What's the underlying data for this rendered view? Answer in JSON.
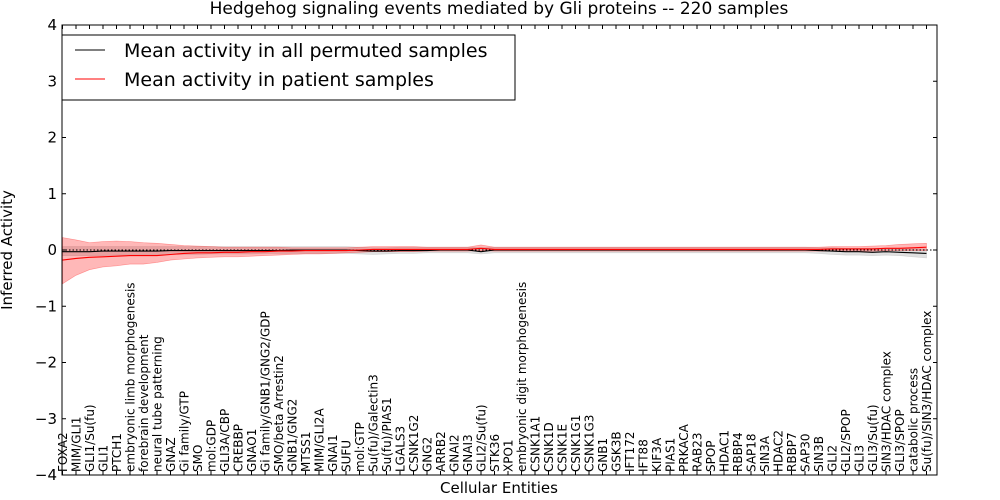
{
  "chart_data": {
    "type": "line",
    "title": "Hedgehog signaling events mediated by Gli proteins -- 220 samples",
    "xlabel": "Cellular Entities",
    "ylabel": "Inferred Activity",
    "ylim": [
      -4,
      4
    ],
    "yticks": [
      -4,
      -3,
      -2,
      -1,
      0,
      1,
      2,
      3,
      4
    ],
    "ytick_labels": [
      "−4",
      "−3",
      "−2",
      "−1",
      "0",
      "1",
      "2",
      "3",
      "4"
    ],
    "grid": false,
    "legend_position": "top-left",
    "categories": [
      "FOXA2",
      "MIM/GLI1",
      "GLI1/Su(fu)",
      "GLI1",
      "PTCH1",
      "embryonic limb morphogenesis",
      "forebrain development",
      "neural tube patterning",
      "GNAZ",
      "Gi family/GTP",
      "SMO",
      "mol:GDP",
      "GLI3A/CBP",
      "CREBBP",
      "GNAO1",
      "Gi family/GNB1/GNG2/GDP",
      "SMO/beta Arrestin2",
      "GNB1/GNG2",
      "MTSS1",
      "MIM/GLI2A",
      "GNAI1",
      "SUFU",
      "mol:GTP",
      "Su(fu)/Galectin3",
      "Su(fu)/PIAS1",
      "LGALS3",
      "CSNK1G2",
      "GNG2",
      "ARRB2",
      "GNAI2",
      "GNAI3",
      "GLI2/Su(fu)",
      "STK36",
      "XPO1",
      "embryonic digit morphogenesis",
      "CSNK1A1",
      "CSNK1D",
      "CSNK1E",
      "CSNK1G1",
      "CSNK1G3",
      "GNB1",
      "GSK3B",
      "IFT172",
      "IFT88",
      "KIF3A",
      "PIAS1",
      "PRKACA",
      "RAB23",
      "SPOP",
      "HDAC1",
      "RBBP4",
      "SAP18",
      "SIN3A",
      "HDAC2",
      "RBBP7",
      "SAP30",
      "SIN3B",
      "GLI2",
      "GLI2/SPOP",
      "GLI3",
      "GLI3/Su(fu)",
      "SIN3/HDAC complex",
      "GLI3/SPOP",
      "catabolic process",
      "Su(fu)/SIN3/HDAC complex"
    ],
    "series": [
      {
        "name": "Mean activity in all permuted samples",
        "color": "#000000",
        "values": [
          -0.03,
          -0.03,
          -0.03,
          -0.02,
          -0.02,
          -0.02,
          -0.02,
          -0.02,
          -0.01,
          -0.01,
          -0.01,
          -0.01,
          -0.01,
          -0.01,
          -0.01,
          -0.01,
          -0.01,
          0.0,
          0.0,
          0.0,
          0.0,
          0.0,
          -0.01,
          -0.02,
          -0.02,
          -0.01,
          -0.01,
          -0.01,
          0.0,
          0.0,
          0.0,
          -0.03,
          0.0,
          0.0,
          0.0,
          0.0,
          0.0,
          0.0,
          0.0,
          0.0,
          0.0,
          0.0,
          0.0,
          0.0,
          0.0,
          0.0,
          0.0,
          0.0,
          0.0,
          0.0,
          0.0,
          0.0,
          0.0,
          0.0,
          0.0,
          0.0,
          -0.01,
          -0.02,
          -0.03,
          -0.03,
          -0.04,
          -0.03,
          -0.04,
          -0.05,
          -0.06
        ],
        "band": {
          "color": "#999999",
          "lower": [
            -0.1,
            -0.1,
            -0.1,
            -0.1,
            -0.09,
            -0.09,
            -0.09,
            -0.09,
            -0.08,
            -0.08,
            -0.08,
            -0.07,
            -0.07,
            -0.07,
            -0.07,
            -0.06,
            -0.06,
            -0.06,
            -0.06,
            -0.06,
            -0.06,
            -0.06,
            -0.07,
            -0.08,
            -0.07,
            -0.06,
            -0.06,
            -0.05,
            -0.05,
            -0.05,
            -0.05,
            -0.07,
            -0.05,
            -0.05,
            -0.05,
            -0.05,
            -0.05,
            -0.05,
            -0.05,
            -0.05,
            -0.05,
            -0.05,
            -0.05,
            -0.05,
            -0.05,
            -0.05,
            -0.05,
            -0.05,
            -0.05,
            -0.05,
            -0.05,
            -0.05,
            -0.05,
            -0.05,
            -0.05,
            -0.05,
            -0.06,
            -0.08,
            -0.09,
            -0.09,
            -0.1,
            -0.09,
            -0.1,
            -0.12,
            -0.14
          ],
          "upper": [
            0.06,
            0.06,
            0.06,
            0.06,
            0.06,
            0.06,
            0.06,
            0.06,
            0.06,
            0.06,
            0.06,
            0.06,
            0.06,
            0.06,
            0.06,
            0.06,
            0.06,
            0.06,
            0.06,
            0.06,
            0.06,
            0.06,
            0.05,
            0.04,
            0.04,
            0.05,
            0.05,
            0.05,
            0.05,
            0.05,
            0.05,
            0.04,
            0.05,
            0.05,
            0.05,
            0.05,
            0.05,
            0.05,
            0.05,
            0.05,
            0.05,
            0.05,
            0.05,
            0.05,
            0.05,
            0.05,
            0.05,
            0.05,
            0.05,
            0.05,
            0.05,
            0.05,
            0.05,
            0.05,
            0.05,
            0.05,
            0.04,
            0.04,
            0.03,
            0.03,
            0.03,
            0.03,
            0.02,
            0.02,
            0.02
          ]
        }
      },
      {
        "name": "Mean activity in patient samples",
        "color": "#ff0000",
        "values": [
          -0.18,
          -0.15,
          -0.13,
          -0.12,
          -0.11,
          -0.1,
          -0.1,
          -0.1,
          -0.08,
          -0.06,
          -0.05,
          -0.05,
          -0.04,
          -0.04,
          -0.03,
          -0.03,
          -0.02,
          -0.02,
          -0.01,
          -0.01,
          -0.01,
          -0.01,
          0.0,
          0.01,
          0.01,
          0.01,
          0.01,
          0.01,
          0.01,
          0.01,
          0.01,
          0.03,
          0.01,
          0.01,
          0.01,
          0.01,
          0.01,
          0.01,
          0.01,
          0.01,
          0.01,
          0.01,
          0.01,
          0.01,
          0.01,
          0.01,
          0.01,
          0.01,
          0.01,
          0.01,
          0.01,
          0.01,
          0.01,
          0.01,
          0.01,
          0.01,
          0.01,
          0.02,
          0.02,
          0.02,
          0.02,
          0.03,
          0.03,
          0.04,
          0.05
        ],
        "band": {
          "color": "#ff0000",
          "lower": [
            -0.6,
            -0.45,
            -0.35,
            -0.3,
            -0.28,
            -0.25,
            -0.25,
            -0.22,
            -0.18,
            -0.16,
            -0.14,
            -0.13,
            -0.12,
            -0.12,
            -0.11,
            -0.1,
            -0.09,
            -0.08,
            -0.07,
            -0.07,
            -0.06,
            -0.05,
            -0.04,
            -0.03,
            -0.03,
            -0.03,
            -0.03,
            -0.02,
            -0.02,
            -0.02,
            -0.02,
            -0.01,
            -0.02,
            -0.02,
            -0.02,
            -0.02,
            -0.02,
            -0.02,
            -0.02,
            -0.02,
            -0.02,
            -0.02,
            -0.02,
            -0.02,
            -0.02,
            -0.02,
            -0.02,
            -0.02,
            -0.02,
            -0.02,
            -0.02,
            -0.02,
            -0.02,
            -0.02,
            -0.02,
            -0.02,
            -0.02,
            -0.02,
            -0.02,
            -0.02,
            -0.02,
            -0.01,
            -0.01,
            -0.01,
            -0.01
          ],
          "upper": [
            0.22,
            0.18,
            0.13,
            0.15,
            0.16,
            0.15,
            0.13,
            0.12,
            0.1,
            0.08,
            0.07,
            0.06,
            0.05,
            0.05,
            0.05,
            0.05,
            0.05,
            0.04,
            0.04,
            0.04,
            0.04,
            0.04,
            0.05,
            0.06,
            0.06,
            0.06,
            0.06,
            0.05,
            0.05,
            0.05,
            0.05,
            0.09,
            0.05,
            0.05,
            0.05,
            0.05,
            0.05,
            0.05,
            0.05,
            0.05,
            0.05,
            0.05,
            0.05,
            0.05,
            0.05,
            0.05,
            0.05,
            0.05,
            0.05,
            0.05,
            0.05,
            0.05,
            0.05,
            0.05,
            0.05,
            0.05,
            0.05,
            0.06,
            0.06,
            0.06,
            0.07,
            0.08,
            0.1,
            0.11,
            0.12
          ]
        }
      }
    ]
  }
}
